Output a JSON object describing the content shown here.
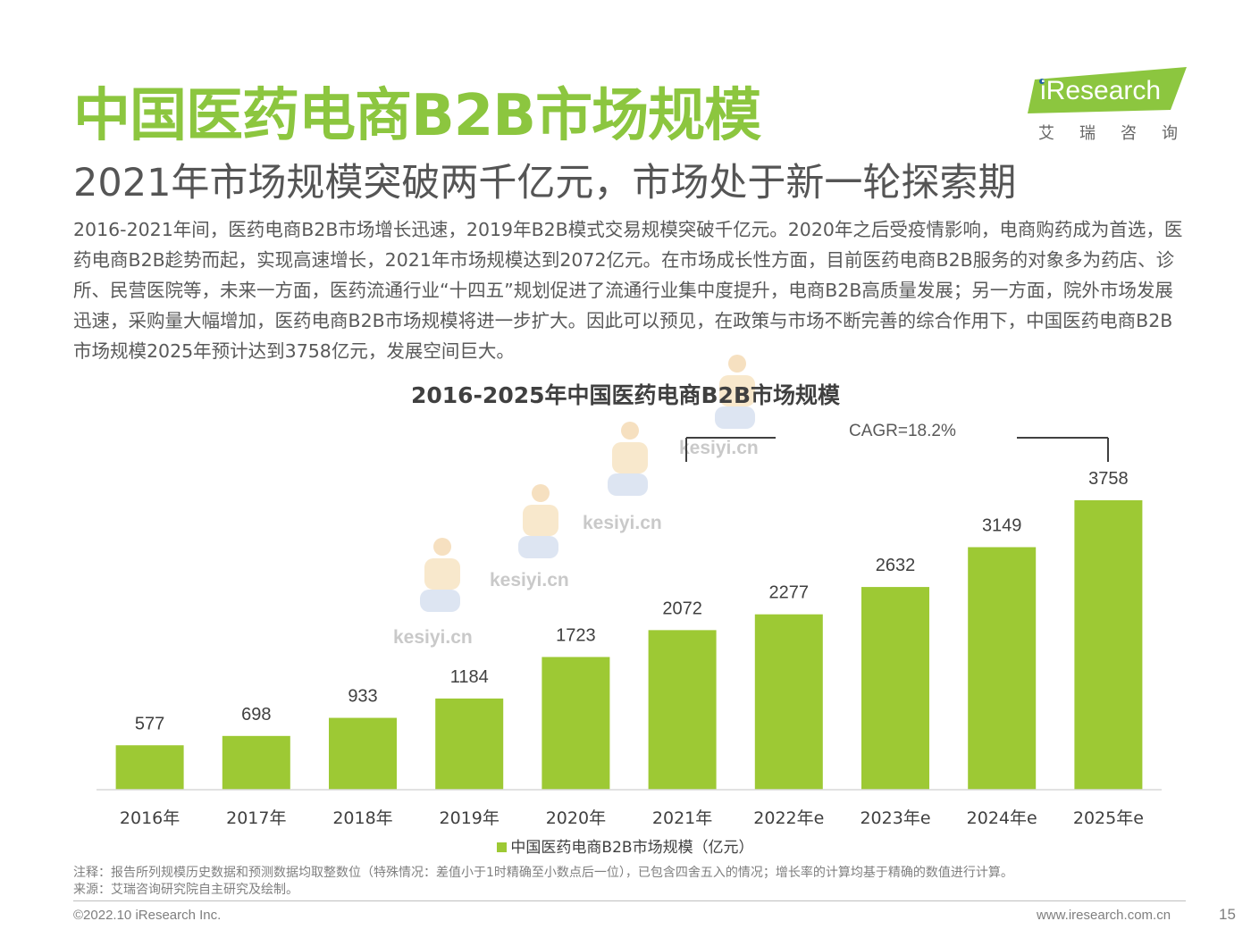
{
  "header": {
    "title": "中国医药电商B2B市场规模",
    "subtitle": "2021年市场规模突破两千亿元，市场处于新一轮探索期",
    "body": "2016-2021年间，医药电商B2B市场增长迅速，2019年B2B模式交易规模突破千亿元。2020年之后受疫情影响，电商购药成为首选，医药电商B2B趁势而起，实现高速增长，2021年市场规模达到2072亿元。在市场成长性方面，目前医药电商B2B服务的对象多为药店、诊所、民营医院等，未来一方面，医药流通行业“十四五”规划促进了流通行业集中度提升，电商B2B高质量发展；另一方面，院外市场发展迅速，采购量大幅增加，医药电商B2B市场规模将进一步扩大。因此可以预见，在政策与市场不断完善的综合作用下，中国医药电商B2B市场规模2025年预计达到3758亿元，发展空间巨大。"
  },
  "logo": {
    "text": "iResearch",
    "cn": "艾瑞咨询",
    "color": "#8cc63f"
  },
  "watermark": {
    "text": "kesiyi.cn"
  },
  "chart_data": {
    "type": "bar",
    "title": "2016-2025年中国医药电商B2B市场规模",
    "categories": [
      "2016年",
      "2017年",
      "2018年",
      "2019年",
      "2020年",
      "2021年",
      "2022年e",
      "2023年e",
      "2024年e",
      "2025年e"
    ],
    "series": [
      {
        "name": "中国医药电商B2B市场规模（亿元）",
        "values": [
          577,
          698,
          933,
          1184,
          1723,
          2072,
          2277,
          2632,
          3149,
          3758
        ],
        "color": "#9dc934"
      }
    ],
    "annotation": "CAGR=18.2%",
    "ylim": [
      0,
      3758
    ],
    "grid": false,
    "legend": "bottom"
  },
  "notes": {
    "note": "注释：报告所列规模历史数据和预测数据均取整数位（特殊情况：差值小于1时精确至小数点后一位），已包含四舍五入的情况；增长率的计算均基于精确的数值进行计算。",
    "source": "来源：艾瑞咨询研究院自主研究及绘制。"
  },
  "footer": {
    "copyright": "©2022.10 iResearch Inc.",
    "website": "www.iresearch.com.cn",
    "page": "15"
  }
}
